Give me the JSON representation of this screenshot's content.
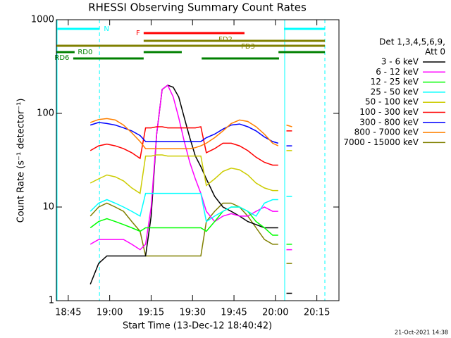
{
  "chart_data": {
    "type": "line",
    "title": "RHESSI Observing Summary Count Rates",
    "xlabel": "Start Time (13-Dec-12 18:40:42)",
    "ylabel": "Count Rate (s⁻¹ detector⁻¹)",
    "legend_title": [
      "Det 1,3,4,5,6,9,",
      "Att 0"
    ],
    "footer": "21-Oct-2021 14:38",
    "log_y": true,
    "xlim": [
      1120.7,
      1223
    ],
    "ylim": [
      1,
      1000
    ],
    "yticks": [
      1,
      10,
      100,
      1000
    ],
    "xticks": [
      {
        "value": 1125,
        "label": "18:45"
      },
      {
        "value": 1140,
        "label": "19:00"
      },
      {
        "value": 1155,
        "label": "19:15"
      },
      {
        "value": 1170,
        "label": "19:30"
      },
      {
        "value": 1185,
        "label": "19:45"
      },
      {
        "value": 1200,
        "label": "20:00"
      },
      {
        "value": 1215,
        "label": "20:15"
      }
    ],
    "x": [
      1133,
      1136,
      1139,
      1142,
      1145,
      1148,
      1151,
      1153,
      1155,
      1157,
      1159,
      1161,
      1163,
      1165,
      1167,
      1169,
      1171,
      1173,
      1175,
      1178,
      1181,
      1184,
      1187,
      1190,
      1193,
      1196,
      1199,
      1201,
      1202.5,
      1204,
      1206
    ],
    "series": [
      {
        "name": "3 - 6 keV",
        "color": "#000000",
        "values": [
          1.5,
          2.5,
          3,
          3,
          3,
          3,
          3,
          3,
          8,
          60,
          180,
          200,
          190,
          150,
          90,
          55,
          35,
          27,
          20,
          13,
          10,
          9,
          8,
          7,
          6.5,
          6,
          6,
          6,
          null,
          1.2,
          1.2
        ]
      },
      {
        "name": "6 - 12 keV",
        "color": "#ff00ff",
        "values": [
          4,
          4.5,
          4.5,
          4.5,
          4.5,
          4,
          3.5,
          4,
          10,
          60,
          180,
          200,
          150,
          90,
          50,
          30,
          20,
          14,
          9,
          7,
          8,
          8.5,
          8,
          8,
          9,
          10,
          9,
          9,
          null,
          3.5,
          3.5
        ]
      },
      {
        "name": "12 - 25 keV",
        "color": "#00ff00",
        "values": [
          6,
          7,
          7.5,
          7,
          6.5,
          6,
          5.5,
          6,
          6,
          6,
          6,
          6,
          6,
          6,
          6,
          6,
          6,
          6,
          5.5,
          7,
          9,
          10,
          10,
          9,
          7,
          6,
          5,
          5,
          null,
          4,
          4
        ]
      },
      {
        "name": "25 - 50 keV",
        "color": "#00ffff",
        "values": [
          9,
          11,
          12,
          11,
          10,
          9,
          8,
          14,
          14,
          14,
          14,
          14,
          14,
          14,
          14,
          14,
          14,
          14,
          7,
          8,
          9,
          10,
          10,
          9,
          8,
          11,
          12,
          12,
          null,
          13,
          13
        ]
      },
      {
        "name": "50 - 100 keV",
        "color": "#cccc00",
        "values": [
          18,
          20,
          22,
          21,
          19,
          16,
          14,
          35,
          35,
          36,
          36,
          35,
          35,
          35,
          35,
          35,
          35,
          35,
          17,
          20,
          24,
          26,
          25,
          22,
          18,
          16,
          15,
          15,
          null,
          40,
          40
        ]
      },
      {
        "name": "100 - 300 keV",
        "color": "#ff0000",
        "values": [
          40,
          45,
          47,
          45,
          42,
          38,
          33,
          70,
          70,
          72,
          72,
          70,
          70,
          70,
          70,
          70,
          70,
          72,
          38,
          42,
          48,
          48,
          45,
          40,
          34,
          30,
          28,
          28,
          null,
          65,
          65
        ]
      },
      {
        "name": "300 - 800 keV",
        "color": "#0000ff",
        "values": [
          75,
          80,
          78,
          75,
          70,
          65,
          58,
          50,
          50,
          50,
          50,
          50,
          50,
          50,
          50,
          50,
          50,
          50,
          55,
          60,
          68,
          75,
          77,
          72,
          65,
          56,
          50,
          48,
          null,
          45,
          45
        ]
      },
      {
        "name": "800 - 7000 keV",
        "color": "#ff8000",
        "values": [
          80,
          86,
          88,
          85,
          75,
          62,
          50,
          42,
          42,
          42,
          42,
          42,
          42,
          42,
          42,
          42,
          43,
          45,
          48,
          55,
          65,
          78,
          85,
          82,
          72,
          60,
          48,
          45,
          null,
          75,
          72
        ]
      },
      {
        "name": "7000 - 15000 keV",
        "color": "#808000",
        "values": [
          8,
          10,
          11,
          10,
          9,
          7,
          5.5,
          3,
          3,
          3,
          3,
          3,
          3,
          3,
          3,
          3,
          3,
          3,
          7,
          9,
          11,
          11,
          10,
          8,
          6,
          4.5,
          4,
          4,
          null,
          2.5,
          2.5
        ]
      }
    ],
    "flags": [
      {
        "label": "N",
        "color": "#00ffff",
        "spans": [
          [
            1120.7,
            1136.3
          ],
          [
            1203.1,
            1217.9
          ]
        ]
      },
      {
        "label": "F",
        "color": "#ff0000",
        "spans": [
          [
            1152.3,
            1188.8
          ]
        ]
      },
      {
        "label": "FD2",
        "color": "#808000",
        "spans": [
          [
            1152.3,
            1217.9
          ]
        ]
      },
      {
        "label": "FD3",
        "color": "#808000",
        "spans": [
          [
            1120.7,
            1217.9
          ]
        ]
      },
      {
        "label": "RD0",
        "color": "#008000",
        "spans": [
          [
            1120.7,
            1127.3
          ],
          [
            1152.3,
            1166.1
          ],
          [
            1201.1,
            1217.9
          ]
        ]
      },
      {
        "label": "RD6",
        "color": "#008000",
        "spans": [
          [
            1126.8,
            1152.3
          ],
          [
            1173.3,
            1201.3
          ]
        ]
      }
    ]
  }
}
